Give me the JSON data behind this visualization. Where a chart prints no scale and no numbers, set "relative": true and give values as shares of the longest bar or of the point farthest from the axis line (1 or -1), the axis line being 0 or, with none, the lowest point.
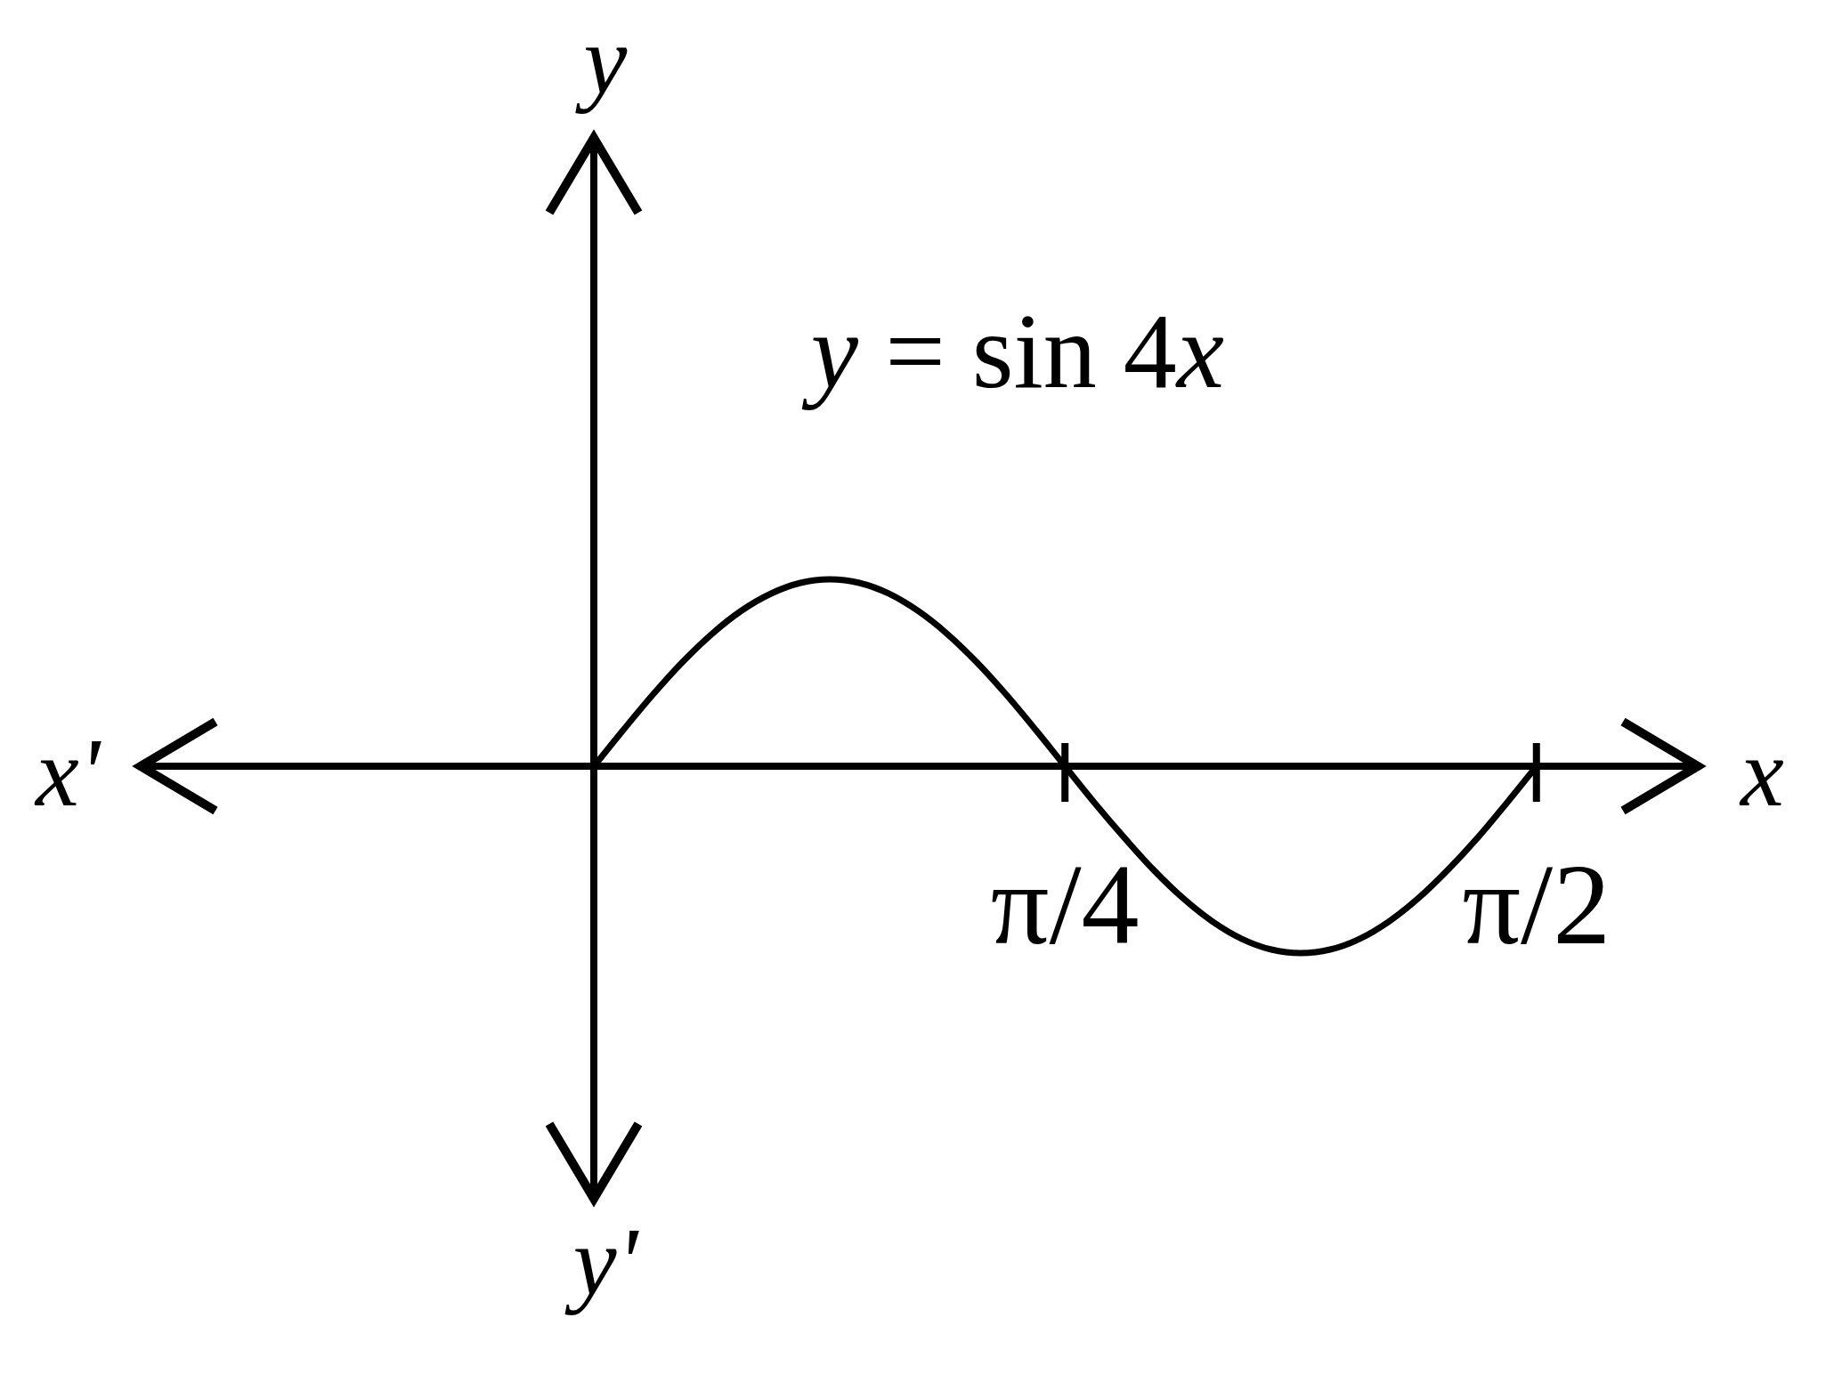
{
  "chart_data": {
    "type": "line",
    "relative": true,
    "xlabel": "x",
    "ylabel": "y",
    "annotations": [
      "x'",
      "y'"
    ],
    "xlim": [
      -0.756,
      1.84
    ],
    "xticks": [
      {
        "value": 0.785,
        "label": "π/4"
      },
      {
        "value": 1.571,
        "label": "π/2"
      }
    ],
    "series": [
      {
        "name": "y = sin 4x",
        "color": "#000000",
        "x": [
          0,
          0.049,
          0.098,
          0.147,
          0.196,
          0.245,
          0.295,
          0.344,
          0.393,
          0.442,
          0.491,
          0.54,
          0.589,
          0.638,
          0.687,
          0.736,
          0.785,
          0.834,
          0.884,
          0.933,
          0.982,
          1.031,
          1.08,
          1.129,
          1.178,
          1.227,
          1.276,
          1.325,
          1.374,
          1.423,
          1.473,
          1.522,
          1.571
        ],
        "values": [
          0,
          0.195,
          0.383,
          0.556,
          0.707,
          0.831,
          0.924,
          0.981,
          1,
          0.981,
          0.924,
          0.831,
          0.707,
          0.556,
          0.383,
          0.195,
          0,
          -0.195,
          -0.383,
          -0.556,
          -0.707,
          -0.831,
          -0.924,
          -0.981,
          -1,
          -0.981,
          -0.924,
          -0.831,
          -0.707,
          -0.556,
          -0.383,
          -0.195,
          0
        ]
      }
    ]
  }
}
